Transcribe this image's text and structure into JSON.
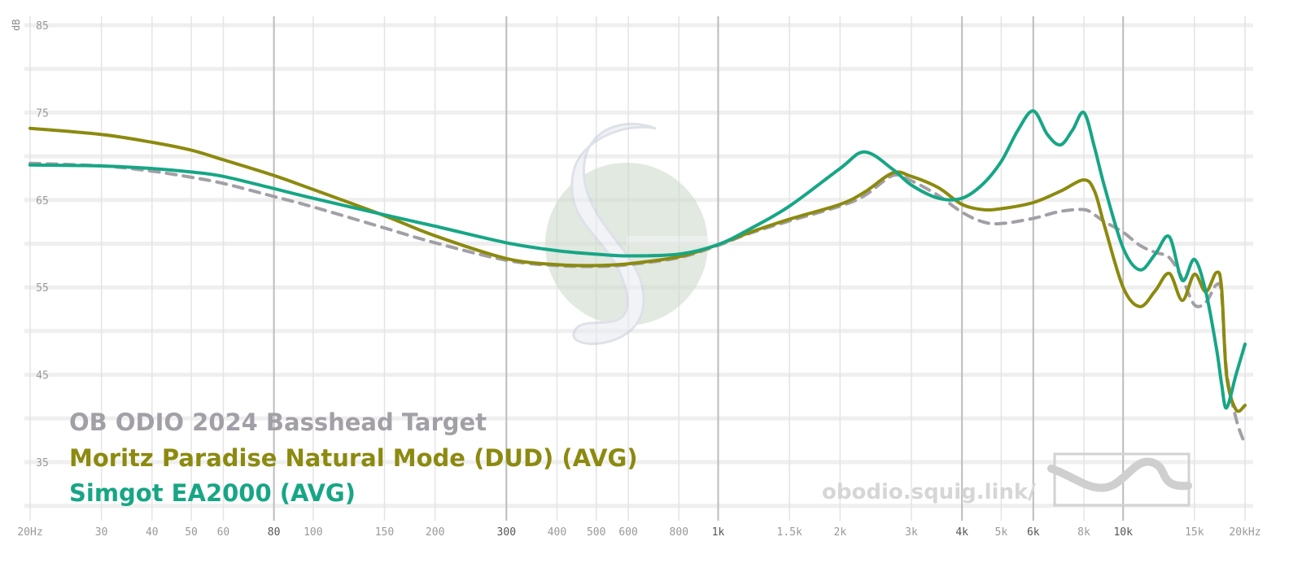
{
  "chart_data": {
    "type": "line",
    "ylabel": "dB",
    "ylim": [
      32,
      86
    ],
    "yticks": [
      85,
      75,
      65,
      55,
      45,
      35
    ],
    "xscale": "log",
    "xlim": [
      20,
      20000
    ],
    "xticks": [
      {
        "value": 20,
        "label": "20Hz"
      },
      {
        "value": 30,
        "label": "30"
      },
      {
        "value": 40,
        "label": "40"
      },
      {
        "value": 50,
        "label": "50"
      },
      {
        "value": 60,
        "label": "60"
      },
      {
        "value": 80,
        "label": "80"
      },
      {
        "value": 100,
        "label": "100"
      },
      {
        "value": 150,
        "label": "150"
      },
      {
        "value": 200,
        "label": "200"
      },
      {
        "value": 300,
        "label": "300"
      },
      {
        "value": 400,
        "label": "400"
      },
      {
        "value": 500,
        "label": "500"
      },
      {
        "value": 600,
        "label": "600"
      },
      {
        "value": 800,
        "label": "800"
      },
      {
        "value": 1000,
        "label": "1k"
      },
      {
        "value": 1500,
        "label": "1.5k"
      },
      {
        "value": 2000,
        "label": "2k"
      },
      {
        "value": 3000,
        "label": "3k"
      },
      {
        "value": 4000,
        "label": "4k"
      },
      {
        "value": 5000,
        "label": "5k"
      },
      {
        "value": 6000,
        "label": "6k"
      },
      {
        "value": 8000,
        "label": "8k"
      },
      {
        "value": 10000,
        "label": "10k"
      },
      {
        "value": 15000,
        "label": "15k"
      },
      {
        "value": 20000,
        "label": "20kHz"
      }
    ],
    "major_xticks": [
      80,
      300,
      1000,
      4000,
      6000,
      10000
    ],
    "grid": true,
    "legend_position": "bottom-left",
    "series": [
      {
        "name": "OB ODIO 2024 Basshead Target",
        "color": "#a39fa6",
        "style": "dashed",
        "points": [
          [
            20,
            69.2
          ],
          [
            30,
            68.9
          ],
          [
            40,
            68.3
          ],
          [
            50,
            67.6
          ],
          [
            60,
            66.9
          ],
          [
            80,
            65.4
          ],
          [
            100,
            64.2
          ],
          [
            150,
            61.8
          ],
          [
            200,
            60.1
          ],
          [
            300,
            58.1
          ],
          [
            400,
            57.5
          ],
          [
            500,
            57.4
          ],
          [
            600,
            57.6
          ],
          [
            800,
            58.4
          ],
          [
            1000,
            59.8
          ],
          [
            1200,
            61.2
          ],
          [
            1500,
            62.6
          ],
          [
            2000,
            64.3
          ],
          [
            2300,
            65.5
          ],
          [
            2700,
            67.8
          ],
          [
            3000,
            67.2
          ],
          [
            3500,
            65.5
          ],
          [
            4000,
            63.6
          ],
          [
            4500,
            62.5
          ],
          [
            5000,
            62.3
          ],
          [
            6000,
            62.9
          ],
          [
            7000,
            63.7
          ],
          [
            8000,
            63.9
          ],
          [
            8500,
            63.3
          ],
          [
            9000,
            62.5
          ],
          [
            10000,
            61.3
          ],
          [
            11000,
            59.8
          ],
          [
            12000,
            59.0
          ],
          [
            13000,
            58.4
          ],
          [
            14000,
            56.0
          ],
          [
            15000,
            53.0
          ],
          [
            16000,
            53.3
          ],
          [
            17000,
            55.3
          ],
          [
            17500,
            54.2
          ],
          [
            18000,
            45.5
          ],
          [
            19000,
            40.0
          ],
          [
            20000,
            37.0
          ]
        ]
      },
      {
        "name": "Moritz Paradise Natural Mode (DUD) (AVG)",
        "color": "#8c8a0f",
        "style": "solid",
        "points": [
          [
            20,
            73.2
          ],
          [
            30,
            72.5
          ],
          [
            40,
            71.6
          ],
          [
            50,
            70.7
          ],
          [
            60,
            69.6
          ],
          [
            80,
            67.8
          ],
          [
            100,
            66.2
          ],
          [
            150,
            63.2
          ],
          [
            200,
            60.9
          ],
          [
            300,
            58.3
          ],
          [
            400,
            57.6
          ],
          [
            500,
            57.5
          ],
          [
            600,
            57.7
          ],
          [
            800,
            58.5
          ],
          [
            1000,
            59.9
          ],
          [
            1200,
            61.3
          ],
          [
            1500,
            62.8
          ],
          [
            2000,
            64.5
          ],
          [
            2300,
            65.9
          ],
          [
            2700,
            68.1
          ],
          [
            3000,
            67.7
          ],
          [
            3500,
            66.4
          ],
          [
            4000,
            64.5
          ],
          [
            4500,
            63.9
          ],
          [
            5000,
            64.0
          ],
          [
            6000,
            64.7
          ],
          [
            7000,
            66.0
          ],
          [
            8000,
            67.3
          ],
          [
            8500,
            66.0
          ],
          [
            9000,
            62.0
          ],
          [
            10000,
            55.0
          ],
          [
            11000,
            52.8
          ],
          [
            12000,
            54.6
          ],
          [
            13000,
            56.6
          ],
          [
            14000,
            53.5
          ],
          [
            15000,
            56.5
          ],
          [
            16000,
            54.5
          ],
          [
            17000,
            56.7
          ],
          [
            17500,
            55.0
          ],
          [
            18000,
            45.0
          ],
          [
            19000,
            41.0
          ],
          [
            20000,
            41.5
          ]
        ]
      },
      {
        "name": "Simgot EA2000 (AVG)",
        "color": "#17a685",
        "style": "solid",
        "points": [
          [
            20,
            69.0
          ],
          [
            30,
            68.9
          ],
          [
            40,
            68.6
          ],
          [
            50,
            68.2
          ],
          [
            60,
            67.7
          ],
          [
            80,
            66.3
          ],
          [
            100,
            65.2
          ],
          [
            150,
            63.3
          ],
          [
            200,
            62.0
          ],
          [
            300,
            60.1
          ],
          [
            400,
            59.2
          ],
          [
            500,
            58.8
          ],
          [
            600,
            58.6
          ],
          [
            800,
            58.8
          ],
          [
            1000,
            59.9
          ],
          [
            1200,
            61.7
          ],
          [
            1500,
            64.3
          ],
          [
            2000,
            68.6
          ],
          [
            2300,
            70.5
          ],
          [
            2700,
            68.5
          ],
          [
            3000,
            66.7
          ],
          [
            3500,
            65.2
          ],
          [
            4000,
            65.2
          ],
          [
            4500,
            66.8
          ],
          [
            5000,
            69.4
          ],
          [
            5500,
            73.0
          ],
          [
            6000,
            75.2
          ],
          [
            6500,
            72.5
          ],
          [
            7000,
            71.3
          ],
          [
            7500,
            73.0
          ],
          [
            8000,
            75.0
          ],
          [
            8500,
            71.0
          ],
          [
            9000,
            66.5
          ],
          [
            10000,
            59.5
          ],
          [
            11000,
            57.0
          ],
          [
            12000,
            58.8
          ],
          [
            13000,
            60.8
          ],
          [
            14000,
            55.8
          ],
          [
            15000,
            58.2
          ],
          [
            16000,
            54.5
          ],
          [
            17000,
            48.0
          ],
          [
            17500,
            44.0
          ],
          [
            18000,
            41.2
          ],
          [
            19000,
            45.0
          ],
          [
            20000,
            48.5
          ]
        ]
      }
    ]
  },
  "legend": {
    "items": [
      {
        "label": "OB ODIO 2024 Basshead Target",
        "color": "#a39fa6"
      },
      {
        "label": "Moritz Paradise Natural Mode (DUD) (AVG)",
        "color": "#8c8a0f"
      },
      {
        "label": "Simgot EA2000 (AVG)",
        "color": "#17a685"
      }
    ]
  },
  "watermark": {
    "site": "obodio.squig.link/"
  }
}
